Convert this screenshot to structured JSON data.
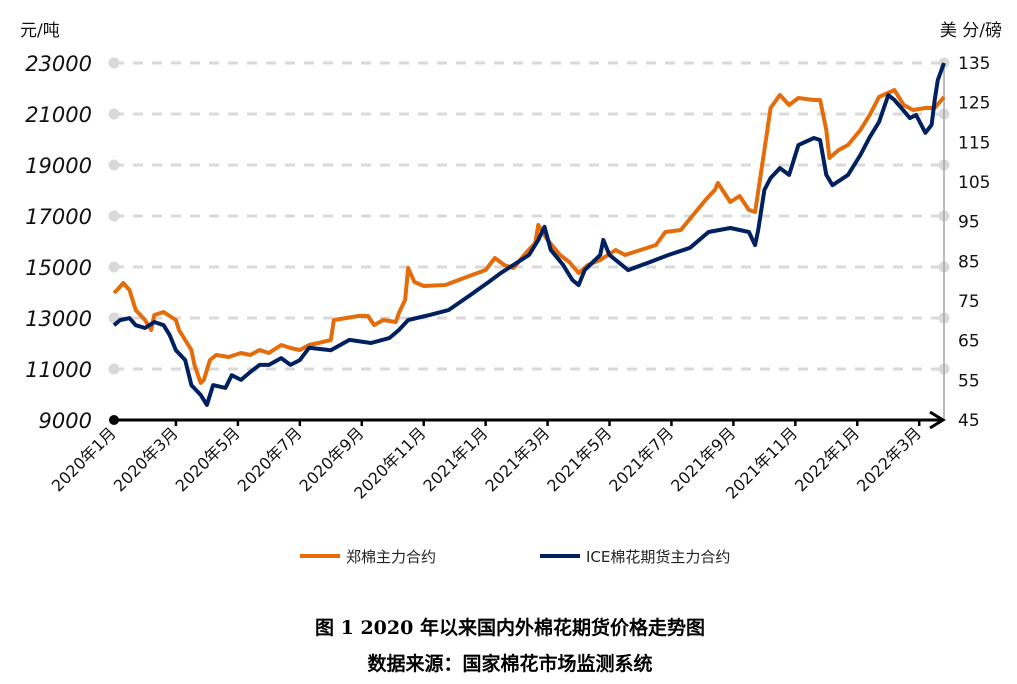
{
  "chart_data": {
    "type": "line",
    "title": "图 1  2020 年以来国内外棉花期货价格走势图",
    "source": "数据来源：国家棉花市场监测系统",
    "left_axis": {
      "label": "元/吨",
      "ylim": [
        9000,
        23000
      ],
      "ticks": [
        9000,
        11000,
        13000,
        15000,
        17000,
        19000,
        21000,
        23000
      ]
    },
    "right_axis": {
      "label": "美 分/磅",
      "ylim": [
        45,
        135
      ],
      "ticks": [
        45,
        55,
        65,
        75,
        85,
        95,
        105,
        115,
        125,
        135
      ]
    },
    "x_unit": "months since 2020年1月",
    "xlim": [
      0,
      26.8
    ],
    "x_ticks": [
      {
        "x": 0,
        "label": "2020年1月"
      },
      {
        "x": 2,
        "label": "2020年3月"
      },
      {
        "x": 4,
        "label": "2020年5月"
      },
      {
        "x": 6,
        "label": "2020年7月"
      },
      {
        "x": 8,
        "label": "2020年9月"
      },
      {
        "x": 10,
        "label": "2020年11月"
      },
      {
        "x": 12,
        "label": "2021年1月"
      },
      {
        "x": 14,
        "label": "2021年3月"
      },
      {
        "x": 16,
        "label": "2021年5月"
      },
      {
        "x": 18,
        "label": "2021年7月"
      },
      {
        "x": 20,
        "label": "2021年9月"
      },
      {
        "x": 22,
        "label": "2021年11月"
      },
      {
        "x": 24,
        "label": "2022年1月"
      },
      {
        "x": 26,
        "label": "2022年3月"
      }
    ],
    "grid": true,
    "legend_position": "bottom",
    "series": [
      {
        "name": "郑棉主力合约",
        "axis": "left",
        "color": "#E46C0A",
        "points": [
          [
            0,
            13980
          ],
          [
            0.1,
            14097
          ],
          [
            0.3,
            14372
          ],
          [
            0.5,
            14097
          ],
          [
            0.6,
            13705
          ],
          [
            0.7,
            13313
          ],
          [
            1.0,
            12920
          ],
          [
            1.2,
            12528
          ],
          [
            1.3,
            13117
          ],
          [
            1.6,
            13234
          ],
          [
            2.0,
            12920
          ],
          [
            2.1,
            12528
          ],
          [
            2.5,
            11744
          ],
          [
            2.6,
            11156
          ],
          [
            2.8,
            10450
          ],
          [
            2.9,
            10567
          ],
          [
            3.1,
            11352
          ],
          [
            3.3,
            11548
          ],
          [
            3.7,
            11470
          ],
          [
            4.1,
            11626
          ],
          [
            4.4,
            11548
          ],
          [
            4.7,
            11744
          ],
          [
            5.0,
            11626
          ],
          [
            5.4,
            11940
          ],
          [
            5.7,
            11823
          ],
          [
            6.0,
            11744
          ],
          [
            6.3,
            11940
          ],
          [
            6.6,
            12018
          ],
          [
            7.0,
            12136
          ],
          [
            7.1,
            12920
          ],
          [
            7.5,
            12999
          ],
          [
            7.9,
            13077
          ],
          [
            8.2,
            13077
          ],
          [
            8.4,
            12724
          ],
          [
            8.7,
            12920
          ],
          [
            9.1,
            12842
          ],
          [
            9.2,
            13195
          ],
          [
            9.4,
            13705
          ],
          [
            9.5,
            14960
          ],
          [
            9.7,
            14411
          ],
          [
            10.0,
            14254
          ],
          [
            10.7,
            14293
          ],
          [
            11.3,
            14568
          ],
          [
            12.0,
            14882
          ],
          [
            12.3,
            15352
          ],
          [
            12.6,
            15078
          ],
          [
            12.9,
            14960
          ],
          [
            13.3,
            15548
          ],
          [
            13.6,
            15940
          ],
          [
            13.7,
            16646
          ],
          [
            14.0,
            16058
          ],
          [
            14.4,
            15470
          ],
          [
            14.7,
            15195
          ],
          [
            15.0,
            14764
          ],
          [
            15.3,
            15078
          ],
          [
            15.7,
            15274
          ],
          [
            16.2,
            15666
          ],
          [
            16.5,
            15470
          ],
          [
            17.0,
            15666
          ],
          [
            17.5,
            15862
          ],
          [
            17.8,
            16372
          ],
          [
            18.3,
            16450
          ],
          [
            18.7,
            17039
          ],
          [
            19.1,
            17627
          ],
          [
            19.4,
            18019
          ],
          [
            19.5,
            18294
          ],
          [
            19.9,
            17549
          ],
          [
            20.2,
            17784
          ],
          [
            20.5,
            17235
          ],
          [
            20.7,
            17157
          ],
          [
            21.0,
            19588
          ],
          [
            21.2,
            21235
          ],
          [
            21.5,
            21745
          ],
          [
            21.8,
            21353
          ],
          [
            22.1,
            21627
          ],
          [
            22.6,
            21549
          ],
          [
            22.8,
            21549
          ],
          [
            23.0,
            20373
          ],
          [
            23.1,
            19274
          ],
          [
            23.4,
            19588
          ],
          [
            23.7,
            19784
          ],
          [
            24.1,
            20373
          ],
          [
            24.4,
            20961
          ],
          [
            24.7,
            21667
          ],
          [
            25.2,
            21941
          ],
          [
            25.5,
            21353
          ],
          [
            25.8,
            21157
          ],
          [
            26.2,
            21235
          ],
          [
            26.5,
            21235
          ],
          [
            26.8,
            21667
          ]
        ]
      },
      {
        "name": "ICE棉花期货主力合约",
        "axis": "right",
        "color": "#002060",
        "points": [
          [
            0,
            68.9
          ],
          [
            0.2,
            70.2
          ],
          [
            0.5,
            70.7
          ],
          [
            0.7,
            68.9
          ],
          [
            1.0,
            68.2
          ],
          [
            1.3,
            69.7
          ],
          [
            1.6,
            68.9
          ],
          [
            1.8,
            66.4
          ],
          [
            2.0,
            62.6
          ],
          [
            2.3,
            60.1
          ],
          [
            2.5,
            53.8
          ],
          [
            2.8,
            51.3
          ],
          [
            3.0,
            48.8
          ],
          [
            3.2,
            53.8
          ],
          [
            3.6,
            53.1
          ],
          [
            3.8,
            56.3
          ],
          [
            4.1,
            55.1
          ],
          [
            4.4,
            57.1
          ],
          [
            4.7,
            58.9
          ],
          [
            5.0,
            58.9
          ],
          [
            5.4,
            60.6
          ],
          [
            5.7,
            58.9
          ],
          [
            6.0,
            60.1
          ],
          [
            6.3,
            63.2
          ],
          [
            7.0,
            62.6
          ],
          [
            7.6,
            65.2
          ],
          [
            8.3,
            64.4
          ],
          [
            8.9,
            65.7
          ],
          [
            9.2,
            67.7
          ],
          [
            9.5,
            70.2
          ],
          [
            10.2,
            71.5
          ],
          [
            10.8,
            72.7
          ],
          [
            11.5,
            76.5
          ],
          [
            12.1,
            79.8
          ],
          [
            12.5,
            82.1
          ],
          [
            12.9,
            84.1
          ],
          [
            13.4,
            86.6
          ],
          [
            13.7,
            90.4
          ],
          [
            13.9,
            93.7
          ],
          [
            14.1,
            87.9
          ],
          [
            14.5,
            84.1
          ],
          [
            14.8,
            80.3
          ],
          [
            15.0,
            79.0
          ],
          [
            15.2,
            82.8
          ],
          [
            15.7,
            86.6
          ],
          [
            15.8,
            90.4
          ],
          [
            16.0,
            86.6
          ],
          [
            16.6,
            82.8
          ],
          [
            17.3,
            84.8
          ],
          [
            17.9,
            86.6
          ],
          [
            18.6,
            88.4
          ],
          [
            19.2,
            92.4
          ],
          [
            19.9,
            93.4
          ],
          [
            20.5,
            92.4
          ],
          [
            20.7,
            89.1
          ],
          [
            20.8,
            92.9
          ],
          [
            21.0,
            103.0
          ],
          [
            21.2,
            106.0
          ],
          [
            21.5,
            108.5
          ],
          [
            21.8,
            106.8
          ],
          [
            22.1,
            114.3
          ],
          [
            22.6,
            116.1
          ],
          [
            22.8,
            115.6
          ],
          [
            23.0,
            106.8
          ],
          [
            23.2,
            104.2
          ],
          [
            23.7,
            106.8
          ],
          [
            24.1,
            111.8
          ],
          [
            24.4,
            116.3
          ],
          [
            24.7,
            120.1
          ],
          [
            25.0,
            126.9
          ],
          [
            25.2,
            125.7
          ],
          [
            25.7,
            121.1
          ],
          [
            25.9,
            121.9
          ],
          [
            26.2,
            117.4
          ],
          [
            26.4,
            119.4
          ],
          [
            26.5,
            125.7
          ],
          [
            26.6,
            130.7
          ],
          [
            26.8,
            135.0
          ]
        ]
      }
    ]
  }
}
